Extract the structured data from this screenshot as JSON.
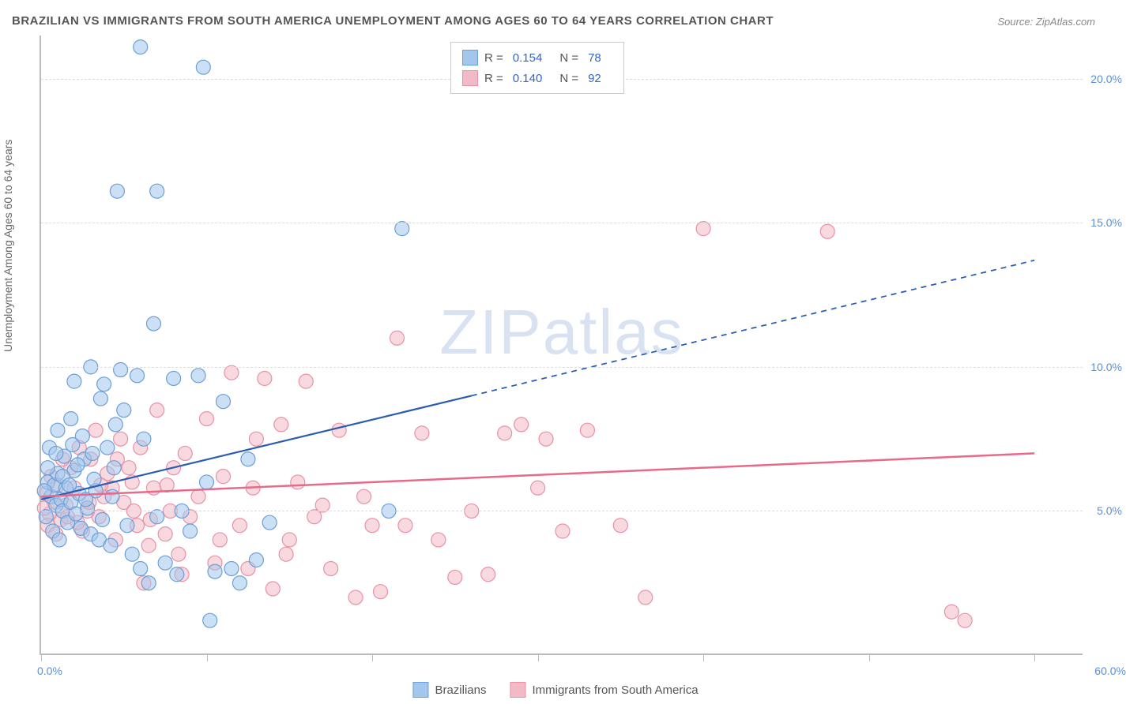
{
  "title": "BRAZILIAN VS IMMIGRANTS FROM SOUTH AMERICA UNEMPLOYMENT AMONG AGES 60 TO 64 YEARS CORRELATION CHART",
  "source": "Source: ZipAtlas.com",
  "watermark_main": "ZIP",
  "watermark_sub": "atlas",
  "y_axis_label": "Unemployment Among Ages 60 to 64 years",
  "chart": {
    "type": "scatter",
    "background_color": "#ffffff",
    "grid_color": "#dddddd",
    "axis_color": "#bbbbbb",
    "xlim": [
      0,
      63
    ],
    "ylim": [
      0,
      21.5
    ],
    "ytick_labels": [
      "5.0%",
      "10.0%",
      "15.0%",
      "20.0%"
    ],
    "ytick_values": [
      5,
      10,
      15,
      20
    ],
    "xtick_values": [
      0,
      10,
      20,
      30,
      40,
      50,
      60
    ],
    "xtick_label_left": "0.0%",
    "xtick_label_right": "60.0%",
    "tick_label_color": "#5b8fd6",
    "marker_radius": 9,
    "marker_opacity": 0.55,
    "series": [
      {
        "name": "Brazilians",
        "label": "Brazilians",
        "color_fill": "#a3c6ed",
        "color_stroke": "#6b9fd8",
        "R": "0.154",
        "N": "78",
        "trend": {
          "x1": 0,
          "y1": 5.4,
          "x2_solid": 26,
          "y2_solid": 9.0,
          "x2_dash": 60,
          "y2_dash": 13.7,
          "color": "#2a5db0",
          "width": 2.2
        },
        "points": [
          [
            6.0,
            21.1
          ],
          [
            9.8,
            20.4
          ],
          [
            4.6,
            16.1
          ],
          [
            7.0,
            16.1
          ],
          [
            21.8,
            14.8
          ],
          [
            0.4,
            6.0
          ],
          [
            0.6,
            5.5
          ],
          [
            0.8,
            5.9
          ],
          [
            0.9,
            5.2
          ],
          [
            1.0,
            6.3
          ],
          [
            1.2,
            5.4
          ],
          [
            1.3,
            5.0
          ],
          [
            1.5,
            5.8
          ],
          [
            1.6,
            4.6
          ],
          [
            1.8,
            5.3
          ],
          [
            2.0,
            6.4
          ],
          [
            2.1,
            4.9
          ],
          [
            2.3,
            5.6
          ],
          [
            2.4,
            4.4
          ],
          [
            2.6,
            6.8
          ],
          [
            2.8,
            5.1
          ],
          [
            3.0,
            4.2
          ],
          [
            3.1,
            7.0
          ],
          [
            3.3,
            5.7
          ],
          [
            3.5,
            4.0
          ],
          [
            3.6,
            8.9
          ],
          [
            3.8,
            9.4
          ],
          [
            4.0,
            7.2
          ],
          [
            4.2,
            3.8
          ],
          [
            4.4,
            6.5
          ],
          [
            4.8,
            9.9
          ],
          [
            5.0,
            8.5
          ],
          [
            5.2,
            4.5
          ],
          [
            5.5,
            3.5
          ],
          [
            5.8,
            9.7
          ],
          [
            6.0,
            3.0
          ],
          [
            6.2,
            7.5
          ],
          [
            6.5,
            2.5
          ],
          [
            6.8,
            11.5
          ],
          [
            7.0,
            4.8
          ],
          [
            7.5,
            3.2
          ],
          [
            8.0,
            9.6
          ],
          [
            8.2,
            2.8
          ],
          [
            8.5,
            5.0
          ],
          [
            9.0,
            4.3
          ],
          [
            9.5,
            9.7
          ],
          [
            10.0,
            6.0
          ],
          [
            10.2,
            1.2
          ],
          [
            10.5,
            2.9
          ],
          [
            11.0,
            8.8
          ],
          [
            11.5,
            3.0
          ],
          [
            12.0,
            2.5
          ],
          [
            12.5,
            6.8
          ],
          [
            13.0,
            3.3
          ],
          [
            13.8,
            4.6
          ],
          [
            21.0,
            5.0
          ],
          [
            2.0,
            9.5
          ],
          [
            3.0,
            10.0
          ],
          [
            4.5,
            8.0
          ],
          [
            1.0,
            7.8
          ],
          [
            0.5,
            7.2
          ],
          [
            1.8,
            8.2
          ],
          [
            2.5,
            7.6
          ],
          [
            0.3,
            4.8
          ],
          [
            0.7,
            4.3
          ],
          [
            1.1,
            4.0
          ],
          [
            1.4,
            6.9
          ],
          [
            1.9,
            7.3
          ],
          [
            0.2,
            5.7
          ],
          [
            0.4,
            6.5
          ],
          [
            0.9,
            7.0
          ],
          [
            1.3,
            6.2
          ],
          [
            1.7,
            5.9
          ],
          [
            2.2,
            6.6
          ],
          [
            2.7,
            5.4
          ],
          [
            3.2,
            6.1
          ],
          [
            3.7,
            4.7
          ],
          [
            4.3,
            5.5
          ]
        ]
      },
      {
        "name": "Immigrants from South America",
        "label": "Immigrants from South America",
        "color_fill": "#f2b9c6",
        "color_stroke": "#e891a6",
        "R": "0.140",
        "N": "92",
        "trend": {
          "x1": 0,
          "y1": 5.5,
          "x2_solid": 60,
          "y2_solid": 7.0,
          "x2_dash": 60,
          "y2_dash": 7.0,
          "color": "#e86a8a",
          "width": 2.5
        },
        "points": [
          [
            40.0,
            14.8
          ],
          [
            47.5,
            14.7
          ],
          [
            55.0,
            1.5
          ],
          [
            55.8,
            1.2
          ],
          [
            35.0,
            4.5
          ],
          [
            36.5,
            2.0
          ],
          [
            33.0,
            7.8
          ],
          [
            31.5,
            4.3
          ],
          [
            29.0,
            8.0
          ],
          [
            30.0,
            5.8
          ],
          [
            27.0,
            2.8
          ],
          [
            26.0,
            5.0
          ],
          [
            24.0,
            4.0
          ],
          [
            23.0,
            7.7
          ],
          [
            21.5,
            11.0
          ],
          [
            20.0,
            4.5
          ],
          [
            19.0,
            2.0
          ],
          [
            18.0,
            7.8
          ],
          [
            17.0,
            5.2
          ],
          [
            16.0,
            9.5
          ],
          [
            15.5,
            6.0
          ],
          [
            15.0,
            4.0
          ],
          [
            14.5,
            8.0
          ],
          [
            14.0,
            2.3
          ],
          [
            13.0,
            7.5
          ],
          [
            12.8,
            5.8
          ],
          [
            12.0,
            4.5
          ],
          [
            11.5,
            9.8
          ],
          [
            11.0,
            6.2
          ],
          [
            10.8,
            4.0
          ],
          [
            10.0,
            8.2
          ],
          [
            9.5,
            5.5
          ],
          [
            9.0,
            4.8
          ],
          [
            8.7,
            7.0
          ],
          [
            8.3,
            3.5
          ],
          [
            8.0,
            6.5
          ],
          [
            7.8,
            5.0
          ],
          [
            7.5,
            4.2
          ],
          [
            7.0,
            8.5
          ],
          [
            6.8,
            5.8
          ],
          [
            6.5,
            3.8
          ],
          [
            6.0,
            7.2
          ],
          [
            5.8,
            4.5
          ],
          [
            5.5,
            6.0
          ],
          [
            5.0,
            5.3
          ],
          [
            4.8,
            7.5
          ],
          [
            4.5,
            4.0
          ],
          [
            4.0,
            6.3
          ],
          [
            3.8,
            5.5
          ],
          [
            3.5,
            4.8
          ],
          [
            3.0,
            6.8
          ],
          [
            2.8,
            5.0
          ],
          [
            2.5,
            4.3
          ],
          [
            2.0,
            5.8
          ],
          [
            1.8,
            6.5
          ],
          [
            1.5,
            5.2
          ],
          [
            1.2,
            4.7
          ],
          [
            1.0,
            5.9
          ],
          [
            0.8,
            5.3
          ],
          [
            0.5,
            4.9
          ],
          [
            0.3,
            5.6
          ],
          [
            0.2,
            5.1
          ],
          [
            13.5,
            9.6
          ],
          [
            28.0,
            7.7
          ],
          [
            30.5,
            7.5
          ],
          [
            19.5,
            5.5
          ],
          [
            22.0,
            4.5
          ],
          [
            17.5,
            3.0
          ],
          [
            16.5,
            4.8
          ],
          [
            25.0,
            2.7
          ],
          [
            20.5,
            2.2
          ],
          [
            6.2,
            2.5
          ],
          [
            8.5,
            2.8
          ],
          [
            10.5,
            3.2
          ],
          [
            12.5,
            3.0
          ],
          [
            14.8,
            3.5
          ],
          [
            0.6,
            6.2
          ],
          [
            1.3,
            6.8
          ],
          [
            2.3,
            7.2
          ],
          [
            3.3,
            7.8
          ],
          [
            4.3,
            5.8
          ],
          [
            5.3,
            6.5
          ],
          [
            0.4,
            4.5
          ],
          [
            0.9,
            4.2
          ],
          [
            1.6,
            4.8
          ],
          [
            2.2,
            4.6
          ],
          [
            2.9,
            5.3
          ],
          [
            3.6,
            5.9
          ],
          [
            4.6,
            6.8
          ],
          [
            5.6,
            5.0
          ],
          [
            6.6,
            4.7
          ],
          [
            7.6,
            5.9
          ]
        ]
      }
    ]
  },
  "legend_top": {
    "R_label": "R =",
    "N_label": "N ="
  }
}
